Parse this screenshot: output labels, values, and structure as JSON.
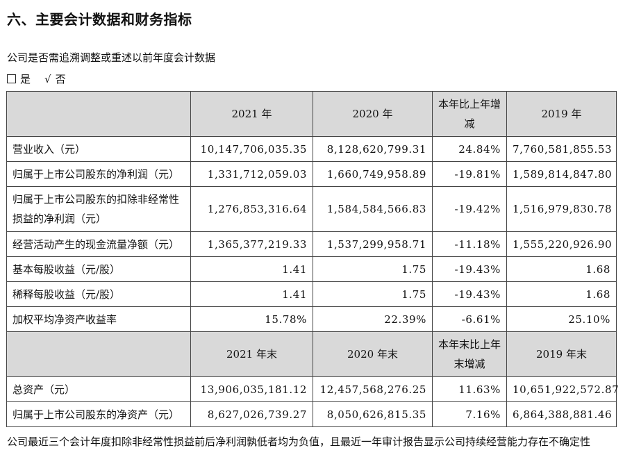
{
  "section_title": "六、主要会计数据和财务指标",
  "restatement": {
    "question": "公司是否需追溯调整或重述以前年度会计数据",
    "yes_box": "□",
    "yes_label": "是",
    "no_mark": "√",
    "no_label": "否"
  },
  "table": {
    "header1": [
      "2021 年",
      "2020 年",
      "本年比上年增减",
      "2019 年"
    ],
    "rows1": [
      [
        "营业收入（元）",
        "10,147,706,035.35",
        "8,128,620,799.31",
        "24.84%",
        "7,760,581,855.53"
      ],
      [
        "归属于上市公司股东的净利润（元）",
        "1,331,712,059.03",
        "1,660,749,958.89",
        "-19.81%",
        "1,589,814,847.80"
      ],
      [
        "归属于上市公司股东的扣除非经常性损益的净利润（元）",
        "1,276,853,316.64",
        "1,584,584,566.83",
        "-19.42%",
        "1,516,979,830.78"
      ],
      [
        "经营活动产生的现金流量净额（元）",
        "1,365,377,219.33",
        "1,537,299,958.71",
        "-11.18%",
        "1,555,220,926.90"
      ],
      [
        "基本每股收益（元/股）",
        "1.41",
        "1.75",
        "-19.43%",
        "1.68"
      ],
      [
        "稀释每股收益（元/股）",
        "1.41",
        "1.75",
        "-19.43%",
        "1.68"
      ],
      [
        "加权平均净资产收益率",
        "15.78%",
        "22.39%",
        "-6.61%",
        "25.10%"
      ]
    ],
    "header2": [
      "2021 年末",
      "2020 年末",
      "本年末比上年末增减",
      "2019 年末"
    ],
    "rows2": [
      [
        "总资产（元）",
        "13,906,035,181.12",
        "12,457,568,276.25",
        "11.63%",
        "10,651,922,572.87"
      ],
      [
        "归属于上市公司股东的净资产（元）",
        "8,627,026,739.27",
        "8,050,626,815.35",
        "7.16%",
        "6,864,388,881.46"
      ]
    ]
  },
  "footnote": "公司最近三个会计年度扣除非经常性损益前后净利润孰低者均为负值，且最近一年审计报告显示公司持续经营能力存在不确定性"
}
